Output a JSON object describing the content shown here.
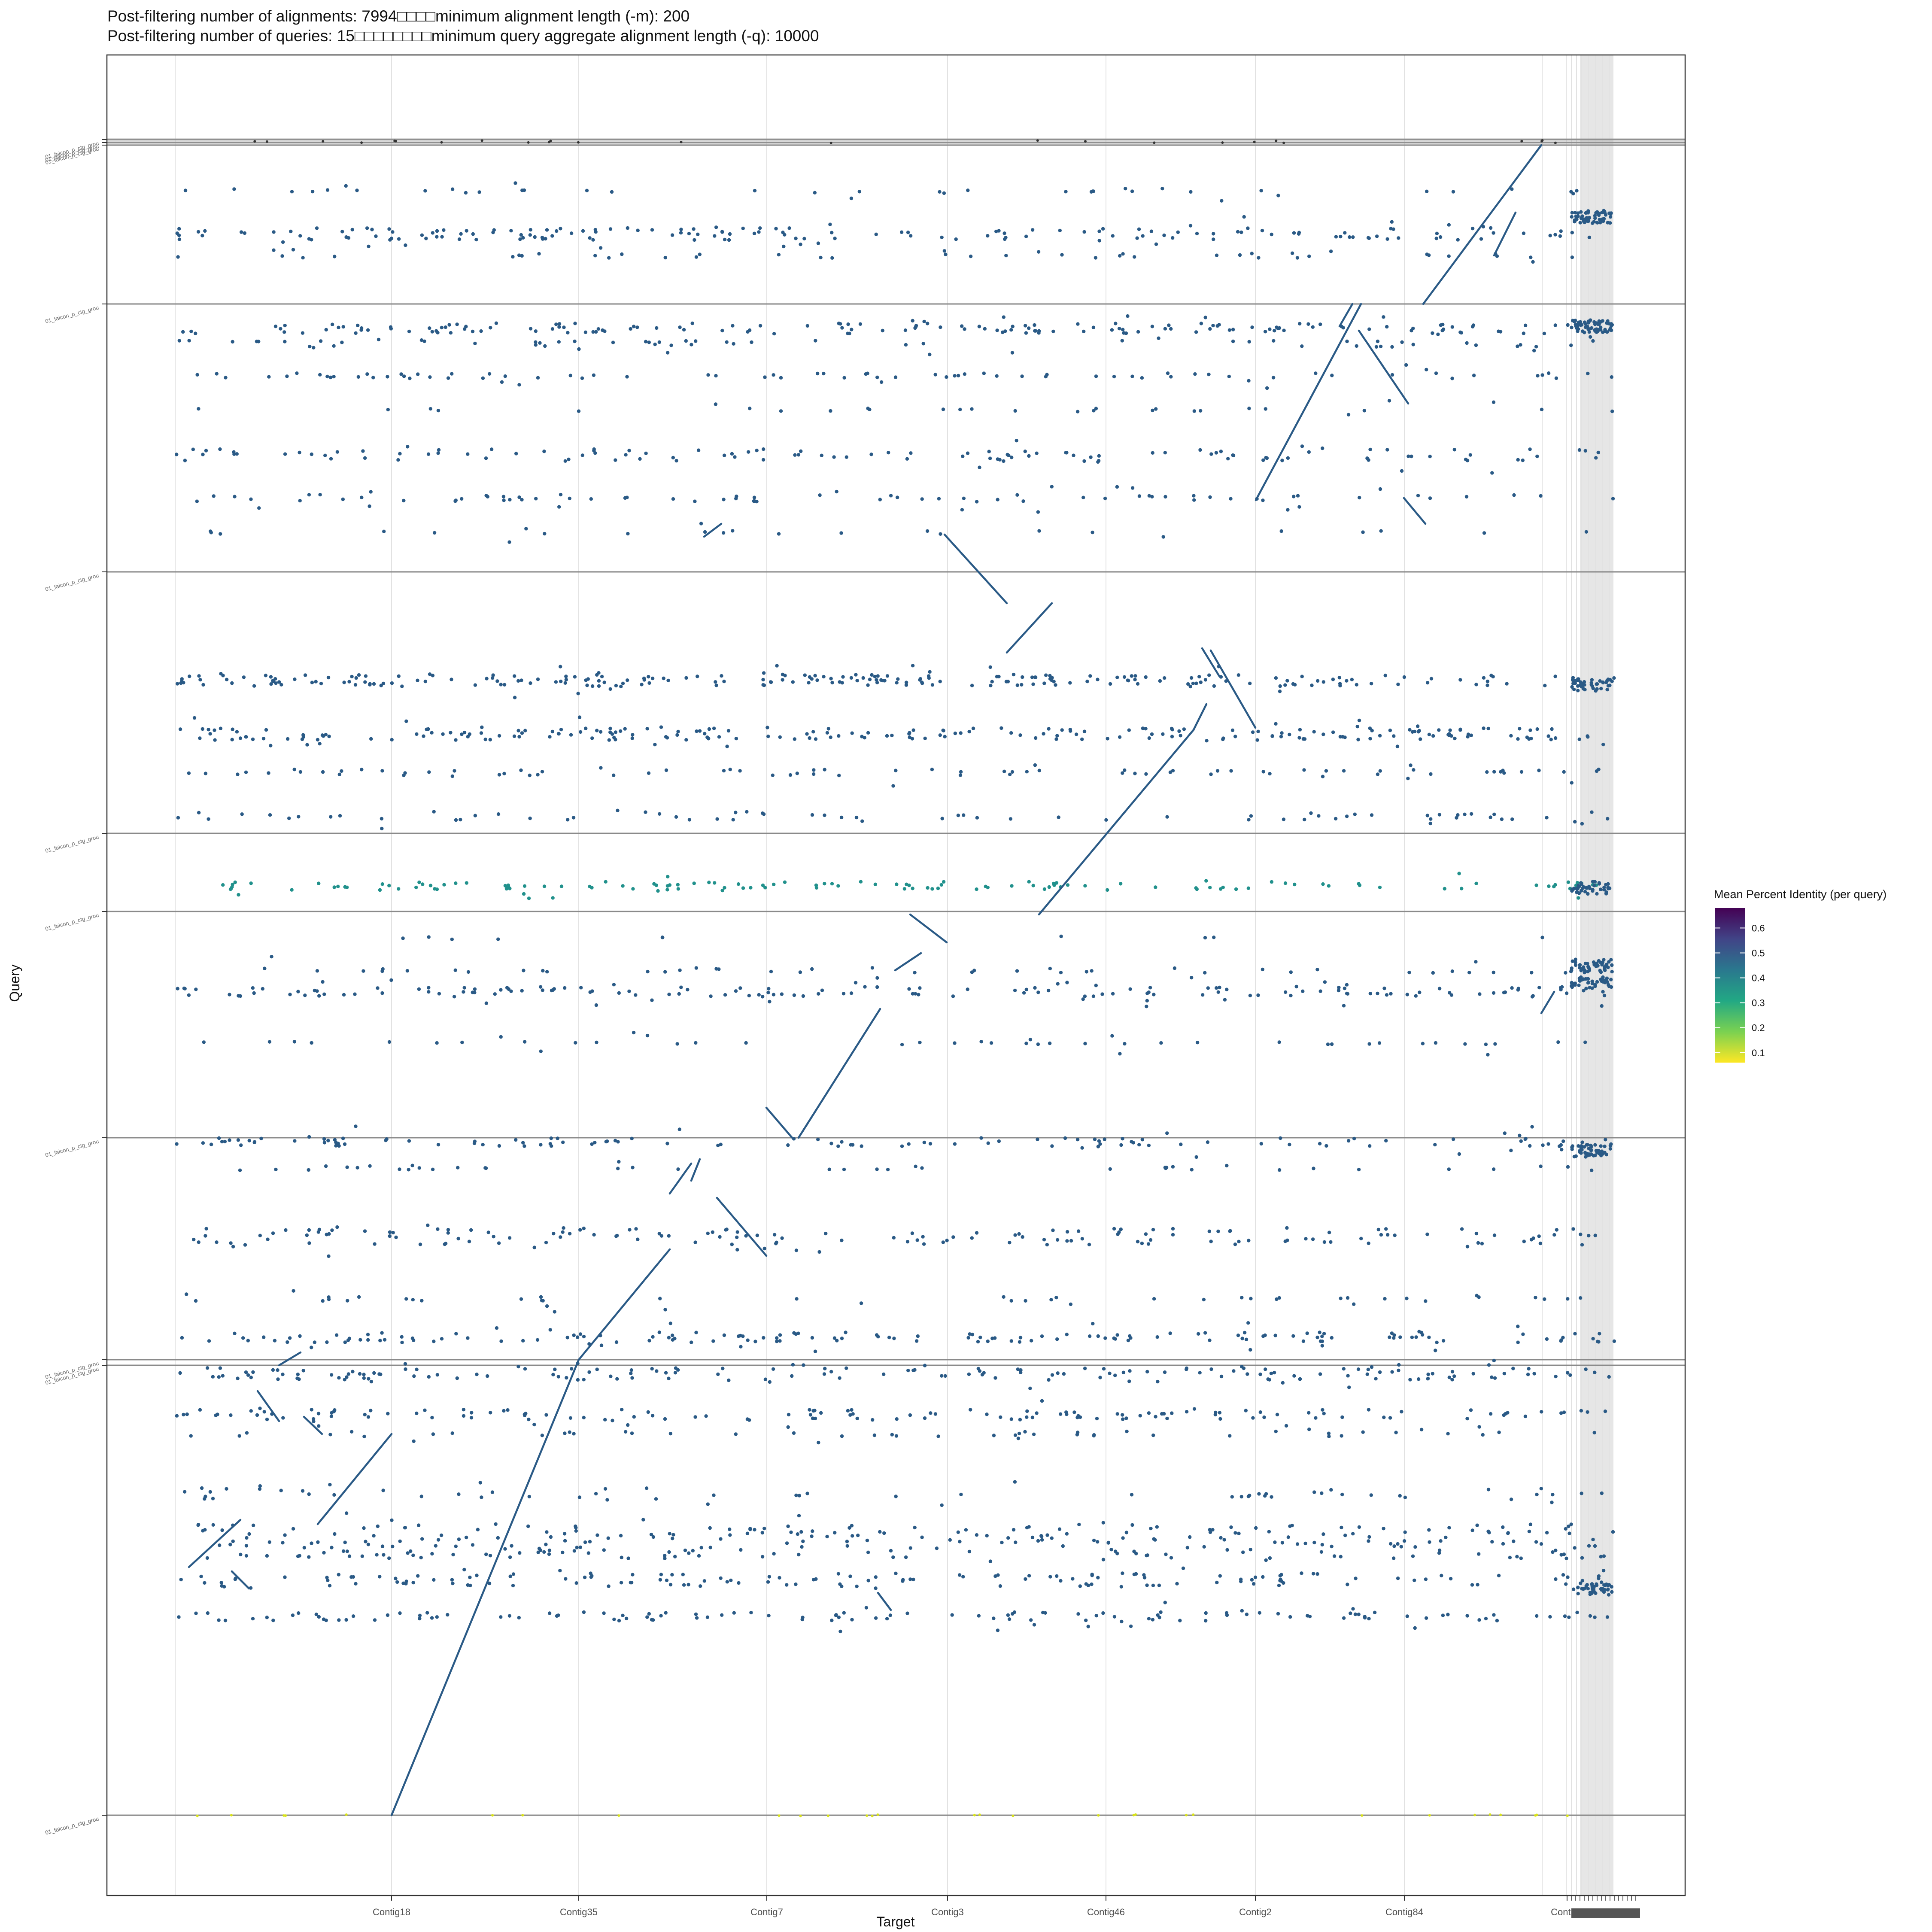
{
  "chart_data": {
    "type": "scatter",
    "title_line1": "Post-filtering number of alignments: 7994□□□□minimum alignment length (-m): 200",
    "title_line2": "Post-filtering number of queries: 15□□□□□□□□minimum query aggregate alignment length (-q): 10000",
    "xlabel": "Target",
    "ylabel": "Query",
    "x_ticks": [
      "Contig18",
      "Contig35",
      "Contig7",
      "Contig3",
      "Contig46",
      "Contig2",
      "Contig84",
      "Contig6"
    ],
    "y_tick_label": "01_falcon_p_ctg_grou",
    "y_tick_count": 12,
    "grid": true,
    "legend": {
      "title": "Mean Percent Identity (per query)",
      "position": "right",
      "ticks": [
        0.6,
        0.5,
        0.4,
        0.3,
        0.2,
        0.1
      ],
      "range": [
        0.06,
        0.68
      ],
      "colors": [
        "#fde725",
        "#7ad151",
        "#22a884",
        "#2a788e",
        "#414487",
        "#440154"
      ]
    },
    "colors": {
      "points": "#2a5a86",
      "teal_points": "#21918c",
      "yellow_points": "#d8e219",
      "highlight_band": "#e6e6e6"
    }
  }
}
